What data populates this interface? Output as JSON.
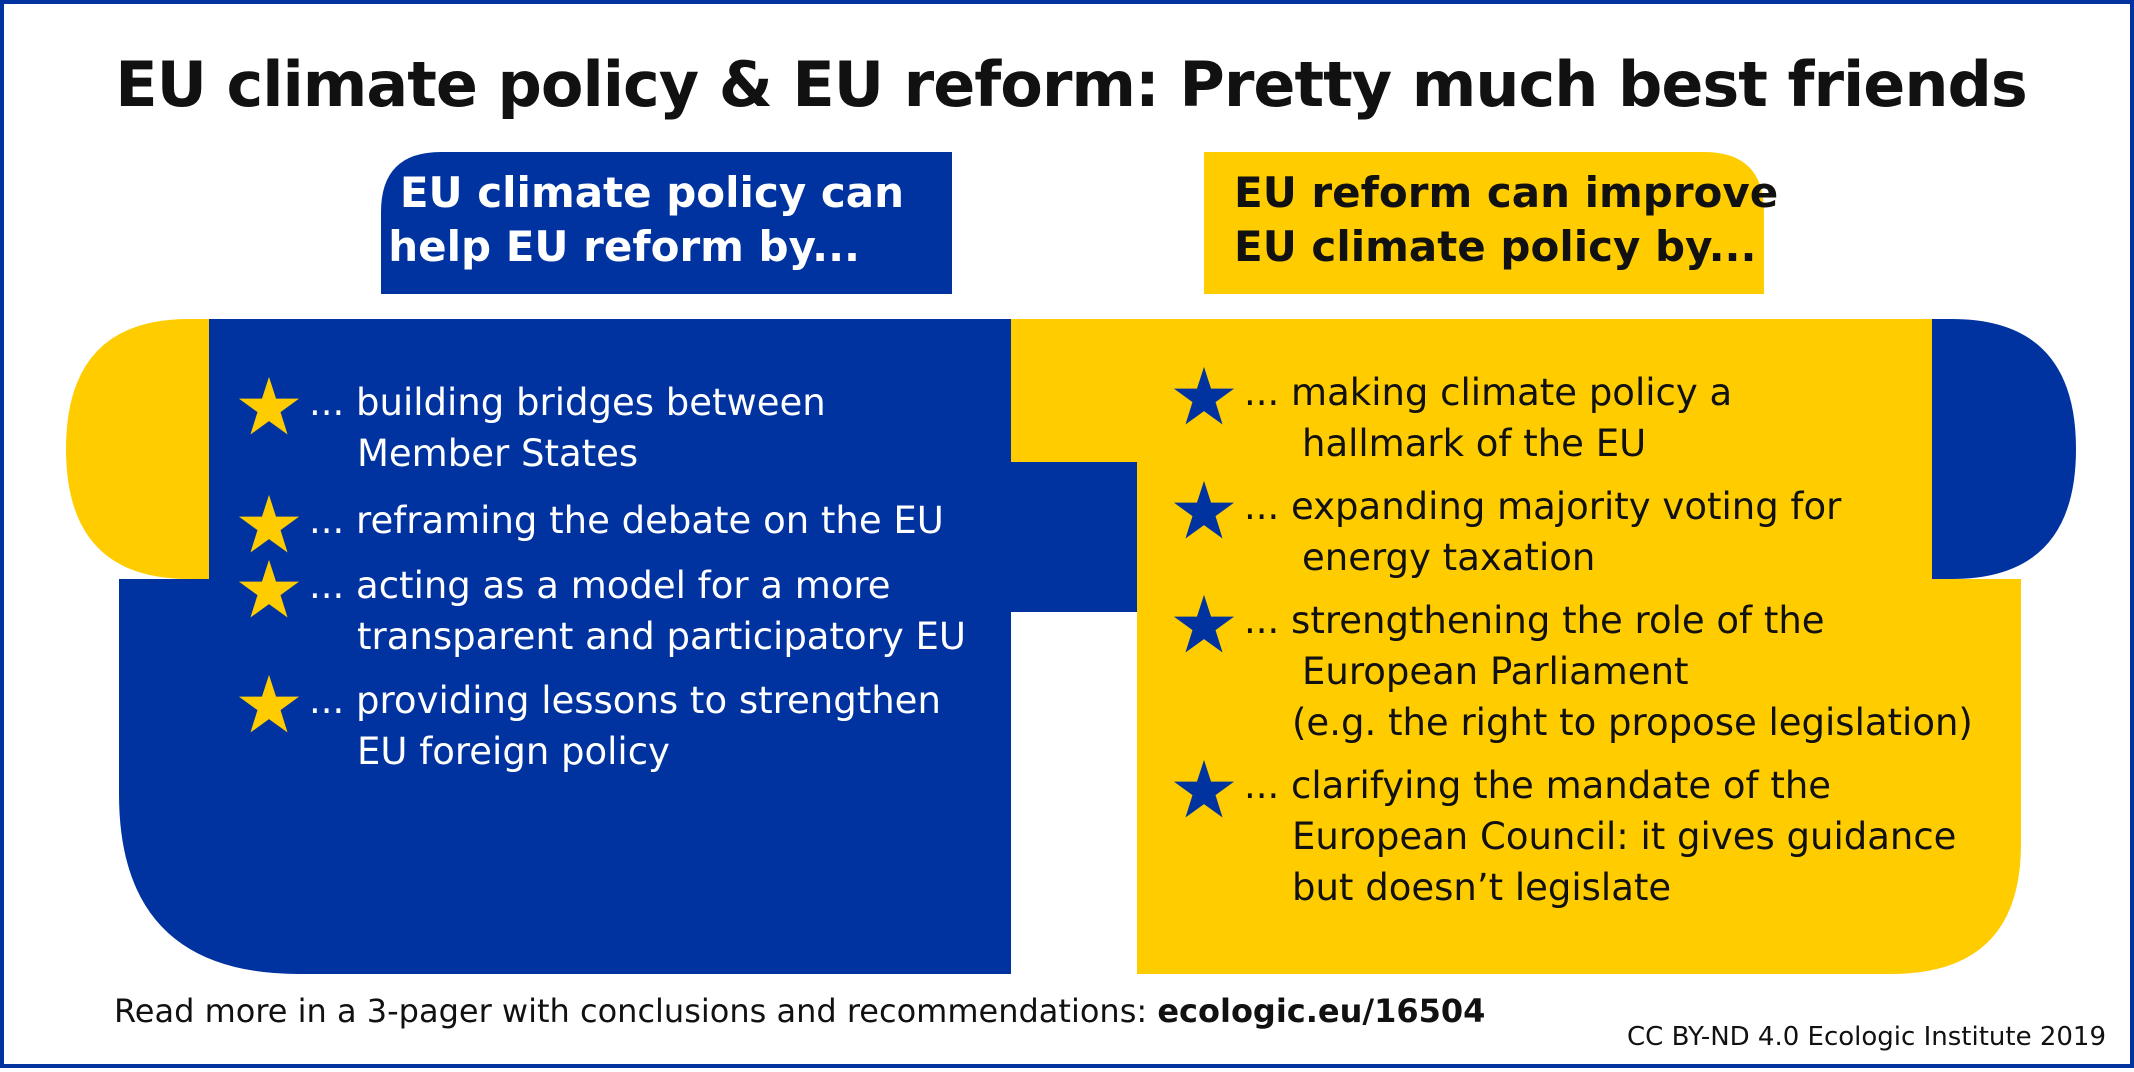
{
  "title": "EU climate policy & EU reform: Pretty much best friends",
  "colors": {
    "eu_blue": "#0033a0",
    "eu_yellow": "#ffcc00",
    "text_dark": "#111111",
    "background": "#ffffff"
  },
  "left_panel": {
    "header_line1": "EU climate policy can",
    "header_line2": "help EU reform by...",
    "bullet_icon": "star-icon",
    "items": [
      {
        "line1": "... building bridges between",
        "line2": "Member States"
      },
      {
        "line1": "... reframing the debate on the EU"
      },
      {
        "line1": "... acting as a model for a more",
        "line2": "transparent and participatory EU"
      },
      {
        "line1": "... providing lessons to strengthen",
        "line2": "EU foreign policy"
      }
    ]
  },
  "right_panel": {
    "header_line1": "EU reform can improve",
    "header_line2": "EU climate policy by...",
    "bullet_icon": "star-icon",
    "items": [
      {
        "line1": "... making climate policy a",
        "line2": "hallmark of the EU"
      },
      {
        "line1": "... expanding majority voting for",
        "line2": "energy taxation"
      },
      {
        "line1": "... strengthening the role of the",
        "line2": "European Parliament",
        "line3": "(e.g. the right to propose legislation)"
      },
      {
        "line1": "... clarifying the mandate of the",
        "line2": "European Council: it gives guidance",
        "line3": "but doesn’t legislate"
      }
    ]
  },
  "footer": {
    "text": "Read more in a 3-pager with conclusions and recommendations: ",
    "link": "ecologic.eu/16504"
  },
  "credit": "CC BY-ND 4.0 Ecologic Institute 2019"
}
